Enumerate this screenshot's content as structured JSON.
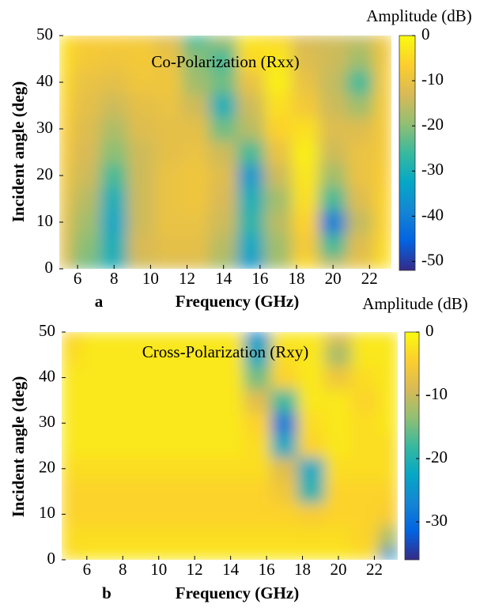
{
  "chart_data": [
    {
      "type": "heatmap",
      "title": "Co-Polarization (Rxx)",
      "panel_label": "a",
      "xlabel": "Frequency (GHz)",
      "ylabel": "Incident angle (deg)",
      "colorbar_label": "Amplitude (dB)",
      "x": [
        5,
        6.5,
        8,
        9.5,
        11,
        12.5,
        14,
        15.5,
        17,
        18.5,
        20,
        21.5,
        23
      ],
      "y": [
        0,
        5,
        10,
        15,
        20,
        25,
        30,
        35,
        40,
        45,
        50
      ],
      "z": [
        [
          -12,
          -22,
          -30,
          -14,
          -12,
          -12,
          -18,
          -35,
          -18,
          -5,
          -15,
          -10,
          -4
        ],
        [
          -12,
          -20,
          -30,
          -13,
          -11,
          -11,
          -16,
          -32,
          -18,
          -8,
          -25,
          -12,
          -5
        ],
        [
          -11,
          -18,
          -32,
          -14,
          -10,
          -10,
          -14,
          -28,
          -16,
          -6,
          -40,
          -15,
          -6
        ],
        [
          -10,
          -16,
          -30,
          -14,
          -10,
          -9,
          -13,
          -30,
          -18,
          -4,
          -25,
          -12,
          -6
        ],
        [
          -9,
          -14,
          -25,
          -14,
          -10,
          -9,
          -12,
          -35,
          -14,
          -3,
          -18,
          -10,
          -7
        ],
        [
          -8,
          -13,
          -20,
          -14,
          -11,
          -10,
          -14,
          -25,
          -10,
          -2,
          -14,
          -10,
          -8
        ],
        [
          -7,
          -12,
          -17,
          -12,
          -11,
          -11,
          -22,
          -16,
          -6,
          -4,
          -12,
          -12,
          -8
        ],
        [
          -6,
          -11,
          -14,
          -11,
          -10,
          -14,
          -30,
          -14,
          -4,
          -8,
          -14,
          -18,
          -8
        ],
        [
          -5,
          -10,
          -11,
          -9,
          -9,
          -18,
          -22,
          -10,
          -2,
          -10,
          -15,
          -25,
          -8
        ],
        [
          -4,
          -8,
          -9,
          -8,
          -10,
          -20,
          -25,
          -5,
          -3,
          -12,
          -14,
          -18,
          -9
        ],
        [
          -4,
          -7,
          -7,
          -8,
          -12,
          -25,
          -18,
          -3,
          -5,
          -13,
          -14,
          -15,
          -9
        ]
      ],
      "xlim": [
        5,
        23.2
      ],
      "ylim": [
        0,
        50
      ],
      "xticks": [
        6,
        8,
        10,
        12,
        14,
        16,
        18,
        20,
        22
      ],
      "yticks": [
        0,
        10,
        20,
        30,
        40,
        50
      ],
      "clim": [
        -52,
        0
      ],
      "cticks": [
        0,
        -10,
        -20,
        -30,
        -40,
        -50
      ],
      "colormap": [
        "#352a87",
        "#0363e1",
        "#1485d4",
        "#06a7c6",
        "#38b99e",
        "#92bf73",
        "#d9ba56",
        "#fcce2e",
        "#f9fb0e"
      ]
    },
    {
      "type": "heatmap",
      "title": "Cross-Polarization (Rxy)",
      "panel_label": "b",
      "xlabel": "Frequency (GHz)",
      "ylabel": "Incident angle (deg)",
      "colorbar_label": "Amplitude (dB)",
      "x": [
        5,
        6.5,
        8,
        9.5,
        11,
        12.5,
        14,
        15.5,
        17,
        18.5,
        20,
        21.5,
        23
      ],
      "y": [
        0,
        5,
        10,
        15,
        20,
        25,
        30,
        35,
        40,
        45,
        50
      ],
      "z": [
        [
          -3,
          -2,
          -2,
          -2,
          -2,
          -2,
          -2,
          -2,
          -2,
          -2,
          -2,
          -3,
          -25
        ],
        [
          -3,
          -3,
          -3,
          -3,
          -3,
          -3,
          -3,
          -3,
          -3,
          -3,
          -3,
          -4,
          -12
        ],
        [
          -4,
          -4,
          -4,
          -4,
          -4,
          -4,
          -4,
          -4,
          -4,
          -5,
          -4,
          -4,
          -5
        ],
        [
          -4,
          -4,
          -4,
          -4,
          -4,
          -4,
          -4,
          -4,
          -6,
          -20,
          -4,
          -4,
          -4
        ],
        [
          -3,
          -3,
          -3,
          -3,
          -3,
          -3,
          -3,
          -3,
          -8,
          -22,
          -3,
          -3,
          -3
        ],
        [
          -2,
          -2,
          -2,
          -2,
          -2,
          -2,
          -2,
          -3,
          -22,
          -4,
          -2,
          -3,
          -3
        ],
        [
          -2,
          -2,
          -2,
          -2,
          -2,
          -2,
          -2,
          -4,
          -28,
          -3,
          -2,
          -3,
          -2
        ],
        [
          -2,
          -2,
          -2,
          -2,
          -2,
          -2,
          -2,
          -8,
          -18,
          -2,
          -2,
          -4,
          -2
        ],
        [
          -2,
          -2,
          -2,
          -2,
          -2,
          -2,
          -2,
          -15,
          -4,
          -2,
          -6,
          -3,
          -2
        ],
        [
          -3,
          -2,
          -2,
          -2,
          -2,
          -2,
          -2,
          -22,
          -3,
          -2,
          -12,
          -2,
          -2
        ],
        [
          -4,
          -2,
          -2,
          -2,
          -2,
          -2,
          -2,
          -25,
          -2,
          -2,
          -8,
          -2,
          -2
        ]
      ],
      "xlim": [
        4.6,
        23.3
      ],
      "ylim": [
        0,
        50
      ],
      "xticks": [
        6,
        8,
        10,
        12,
        14,
        16,
        18,
        20,
        22
      ],
      "yticks": [
        0,
        10,
        20,
        30,
        40,
        50
      ],
      "clim": [
        -36,
        0
      ],
      "cticks": [
        0,
        -10,
        -20,
        -30
      ],
      "colormap": [
        "#352a87",
        "#0363e1",
        "#1485d4",
        "#06a7c6",
        "#38b99e",
        "#92bf73",
        "#d9ba56",
        "#fcce2e",
        "#f9fb0e"
      ]
    }
  ]
}
